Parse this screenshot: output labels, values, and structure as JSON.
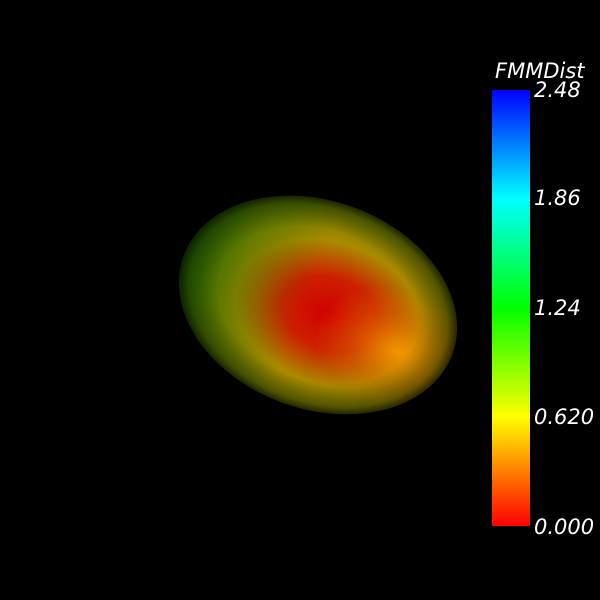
{
  "colorbar": {
    "title": "FMMDist",
    "ticks": [
      "2.48",
      "1.86",
      "1.24",
      "0.620",
      "0.000"
    ],
    "colors": [
      "#0000ff",
      "#00ffff",
      "#00ff00",
      "#ffff00",
      "#ff0000"
    ]
  },
  "scene": {
    "object": "ellipsoid-surface",
    "background": "#000000"
  }
}
